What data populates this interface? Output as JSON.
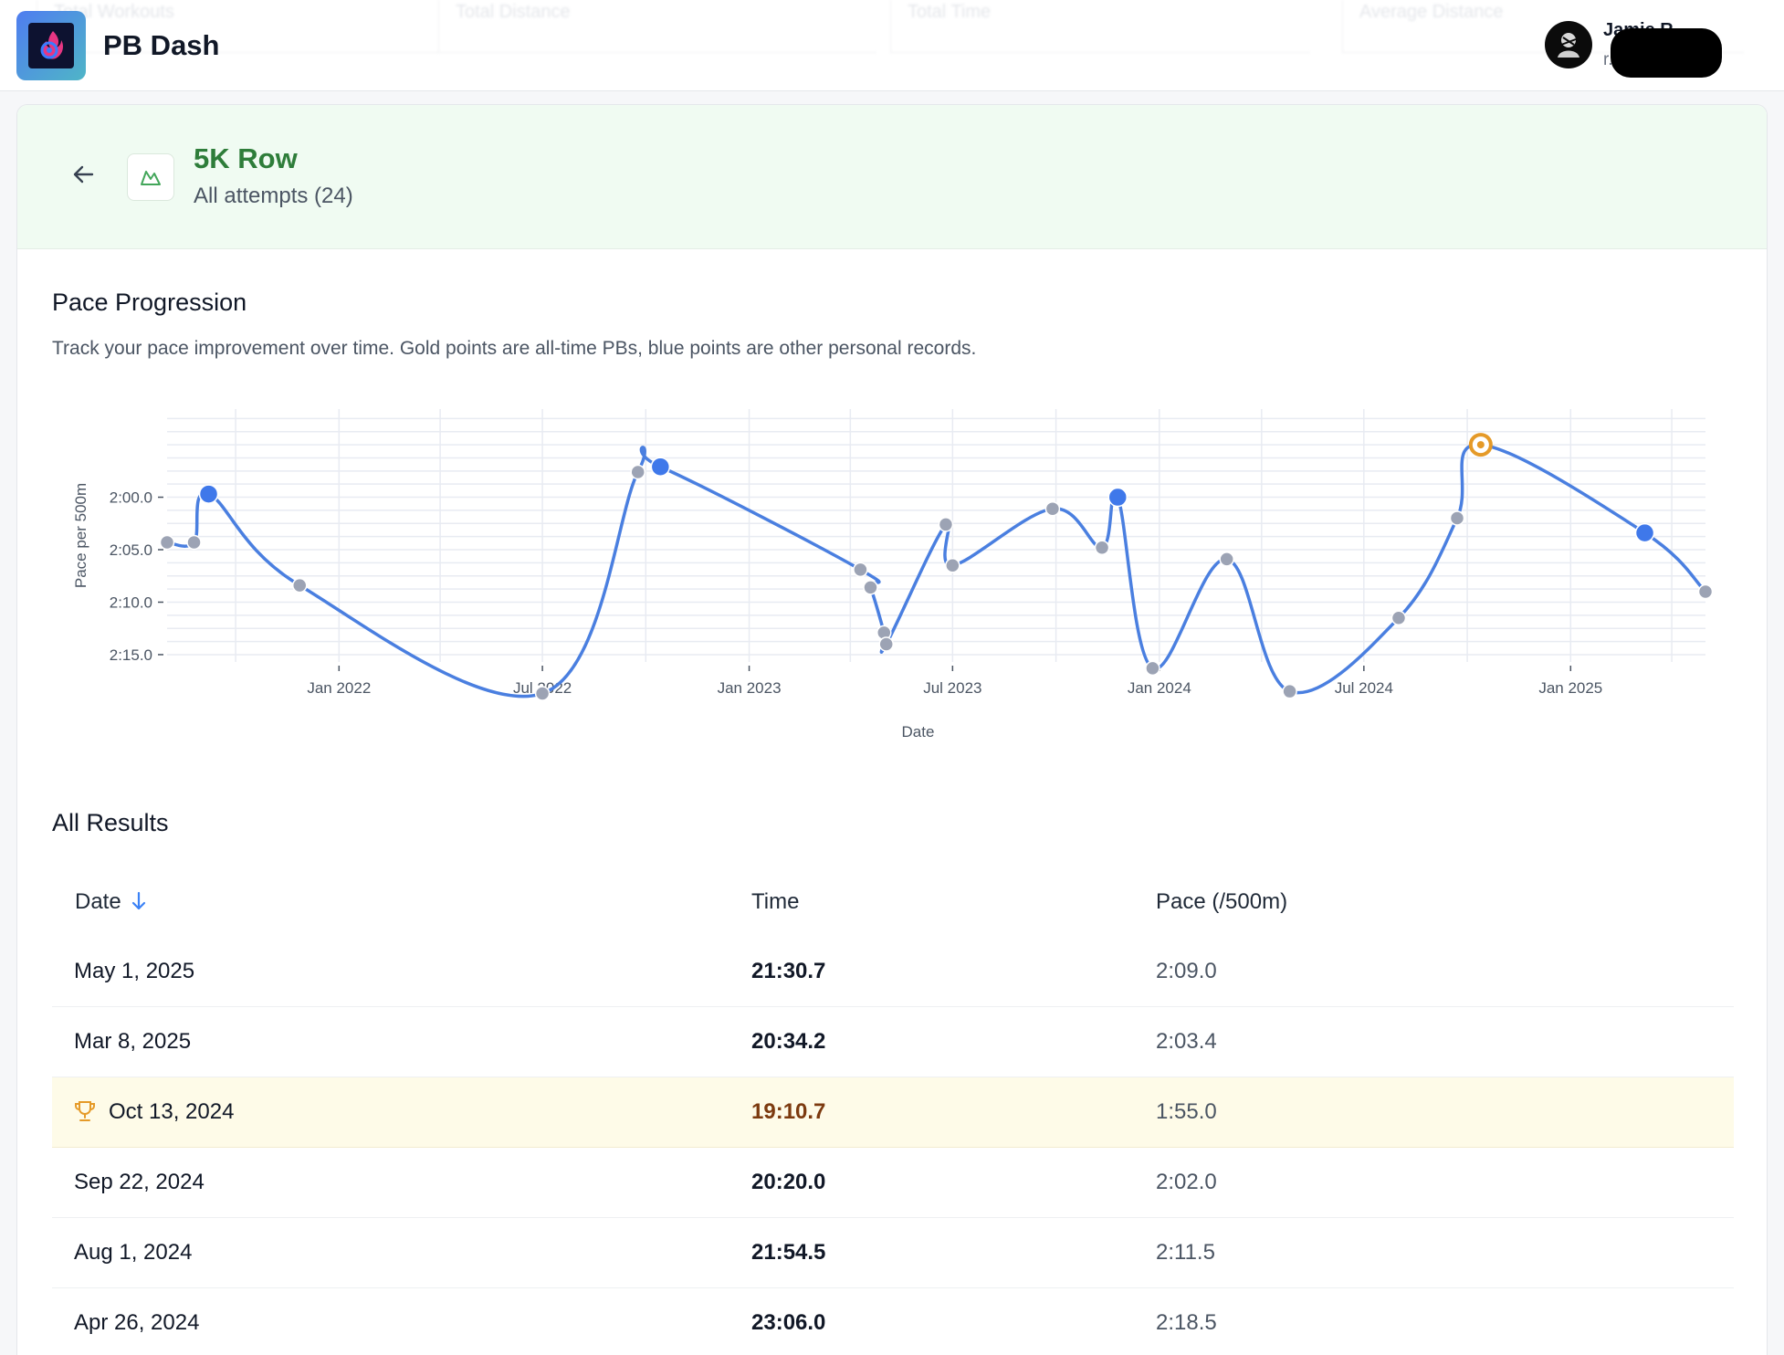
{
  "app": {
    "title": "PB Dash",
    "ghost_stats": [
      "Total Workouts",
      "Total Distance",
      "Total Time",
      "Average Distance"
    ]
  },
  "user": {
    "name": "Jamie R.",
    "email": "r...com"
  },
  "event": {
    "title": "5K Row",
    "subtitle": "All attempts (24)"
  },
  "chart_section": {
    "title": "Pace Progression",
    "description": "Track your pace improvement over time. Gold points are all-time PBs, blue points are other personal records."
  },
  "chart_data": {
    "type": "line",
    "title": "",
    "xlabel": "Date",
    "ylabel": "Pace per 500m",
    "y_axis": "pace seconds per 500m, inverted (faster at top)",
    "ylim": [
      135.7,
      111.6
    ],
    "xlim": [
      "2021-08-01",
      "2025-05-01"
    ],
    "x_ticks": [
      "Jan 2022",
      "Jul 2022",
      "Jan 2023",
      "Jul 2023",
      "Jan 2024",
      "Jul 2024",
      "Jan 2025"
    ],
    "y_ticks": [
      "2:00.0",
      "2:05.0",
      "2:10.0",
      "2:15.0"
    ],
    "grid": true,
    "colors": {
      "line": "#4a7fe0",
      "record": "#3f78ea",
      "other": "#9ca3b4",
      "pb": "#e59a28"
    },
    "points": [
      {
        "date": "2021-08-01",
        "pace": 124.3,
        "kind": "other"
      },
      {
        "date": "2021-08-25",
        "pace": 124.3,
        "kind": "other"
      },
      {
        "date": "2021-09-07",
        "pace": 119.7,
        "kind": "record"
      },
      {
        "date": "2021-11-27",
        "pace": 128.4,
        "kind": "other"
      },
      {
        "date": "2022-07-01",
        "pace": 138.7,
        "kind": "other"
      },
      {
        "date": "2022-09-24",
        "pace": 117.6,
        "kind": "other"
      },
      {
        "date": "2022-10-14",
        "pace": 117.1,
        "kind": "record"
      },
      {
        "date": "2023-04-10",
        "pace": 126.9,
        "kind": "other"
      },
      {
        "date": "2023-04-19",
        "pace": 128.6,
        "kind": "other"
      },
      {
        "date": "2023-05-01",
        "pace": 132.9,
        "kind": "other"
      },
      {
        "date": "2023-05-03",
        "pace": 134.0,
        "kind": "other"
      },
      {
        "date": "2023-06-25",
        "pace": 122.6,
        "kind": "other"
      },
      {
        "date": "2023-07-01",
        "pace": 126.5,
        "kind": "other"
      },
      {
        "date": "2023-09-28",
        "pace": 121.1,
        "kind": "other"
      },
      {
        "date": "2023-11-11",
        "pace": 124.8,
        "kind": "other"
      },
      {
        "date": "2023-11-25",
        "pace": 120.0,
        "kind": "record"
      },
      {
        "date": "2023-12-26",
        "pace": 136.3,
        "kind": "other"
      },
      {
        "date": "2024-03-01",
        "pace": 125.9,
        "kind": "other"
      },
      {
        "date": "2024-04-26",
        "pace": 138.5,
        "kind": "other"
      },
      {
        "date": "2024-08-01",
        "pace": 131.5,
        "kind": "other"
      },
      {
        "date": "2024-09-22",
        "pace": 122.0,
        "kind": "other"
      },
      {
        "date": "2024-10-13",
        "pace": 115.0,
        "kind": "pb"
      },
      {
        "date": "2025-03-08",
        "pace": 123.4,
        "kind": "record"
      },
      {
        "date": "2025-05-01",
        "pace": 129.0,
        "kind": "other"
      }
    ]
  },
  "results_section": {
    "title": "All Results",
    "columns": {
      "date": "Date",
      "time": "Time",
      "pace": "Pace (/500m)"
    },
    "rows": [
      {
        "date": "May 1, 2025",
        "time": "21:30.7",
        "pace": "2:09.0",
        "pb": false
      },
      {
        "date": "Mar 8, 2025",
        "time": "20:34.2",
        "pace": "2:03.4",
        "pb": false
      },
      {
        "date": "Oct 13, 2024",
        "time": "19:10.7",
        "pace": "1:55.0",
        "pb": true
      },
      {
        "date": "Sep 22, 2024",
        "time": "20:20.0",
        "pace": "2:02.0",
        "pb": false
      },
      {
        "date": "Aug 1, 2024",
        "time": "21:54.5",
        "pace": "2:11.5",
        "pb": false
      },
      {
        "date": "Apr 26, 2024",
        "time": "23:06.0",
        "pace": "2:18.5",
        "pb": false
      }
    ]
  }
}
